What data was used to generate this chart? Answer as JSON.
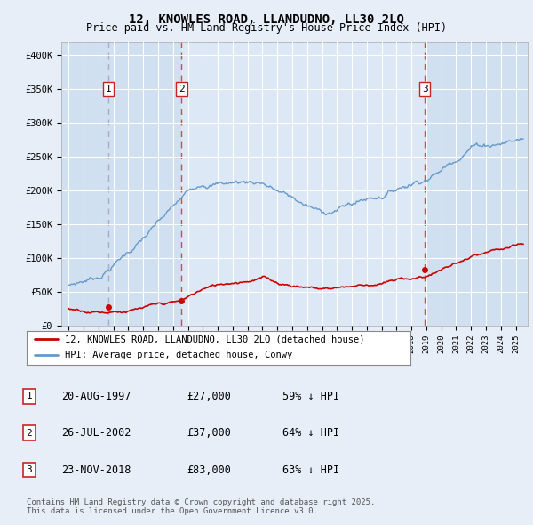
{
  "title_line1": "12, KNOWLES ROAD, LLANDUDNO, LL30 2LQ",
  "title_line2": "Price paid vs. HM Land Registry's House Price Index (HPI)",
  "background_color": "#e8eef8",
  "plot_bg_color": "#dce8f5",
  "grid_color": "#ffffff",
  "sale_dates": [
    1997.64,
    2002.57,
    2018.9
  ],
  "sale_prices": [
    27000,
    37000,
    83000
  ],
  "sale_labels": [
    "1",
    "2",
    "3"
  ],
  "legend_line1": "12, KNOWLES ROAD, LLANDUDNO, LL30 2LQ (detached house)",
  "legend_line2": "HPI: Average price, detached house, Conwy",
  "table_data": [
    [
      "1",
      "20-AUG-1997",
      "£27,000",
      "59% ↓ HPI"
    ],
    [
      "2",
      "26-JUL-2002",
      "£37,000",
      "64% ↓ HPI"
    ],
    [
      "3",
      "23-NOV-2018",
      "£83,000",
      "63% ↓ HPI"
    ]
  ],
  "footnote": "Contains HM Land Registry data © Crown copyright and database right 2025.\nThis data is licensed under the Open Government Licence v3.0.",
  "hpi_color": "#6699cc",
  "price_color": "#cc0000",
  "sale1_vline_color": "#aaaacc",
  "sale23_vline_color": "#dd4444",
  "ylim": [
    0,
    420000
  ],
  "xlim_start": 1994.5,
  "xlim_end": 2025.8,
  "highlight_color": "#ccddf0"
}
